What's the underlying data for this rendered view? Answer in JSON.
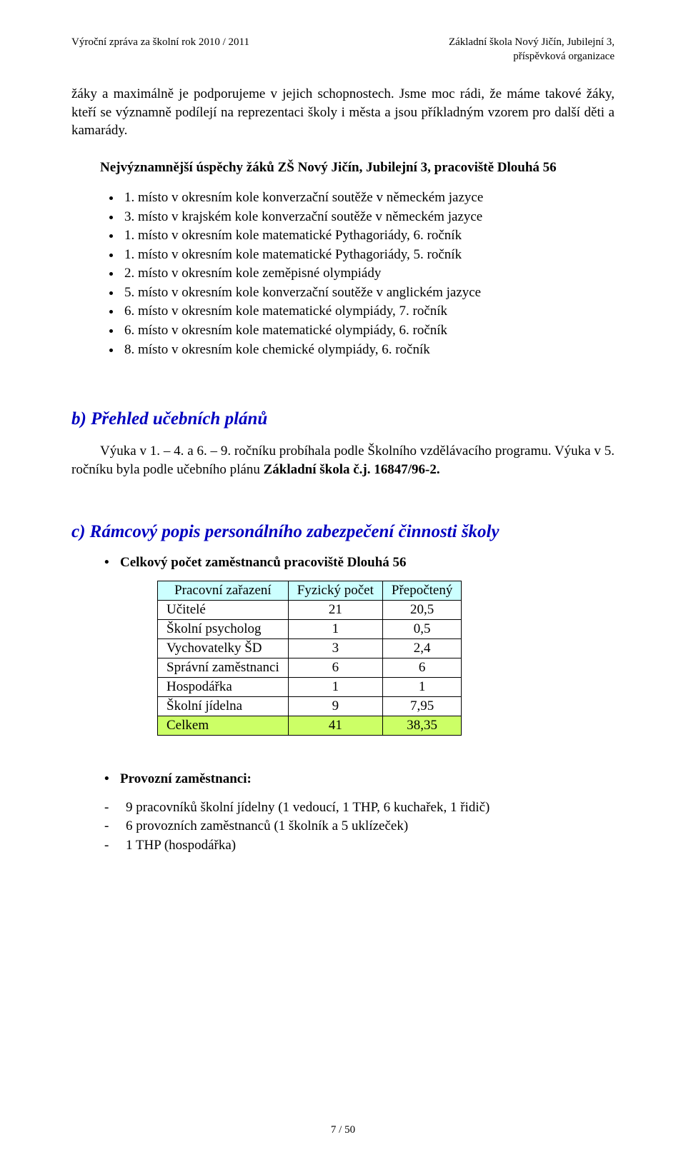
{
  "colors": {
    "heading": "#0000c0",
    "text": "#000000",
    "header_blue_bg": "#ccffff",
    "total_green_bg": "#ccff66",
    "table_border": "#000000",
    "page_bg": "#ffffff"
  },
  "typography": {
    "body_fontsize_pt": 12,
    "heading_fontsize_pt": 16,
    "header_fontsize_pt": 10,
    "font_family": "Times New Roman"
  },
  "header": {
    "left": "Výroční zpráva za školní rok 2010 / 2011",
    "right_line1": "Základní škola Nový Jičín, Jubilejní 3,",
    "right_line2": "příspěvková organizace"
  },
  "intro_paragraph": "žáky a maximálně je podporujeme v jejich schopnostech. Jsme moc rádi, že máme takové žáky, kteří se významně podílejí na reprezentaci školy i města a jsou příkladným vzorem pro další děti a kamarády.",
  "achievements_title": "Nejvýznamnější úspěchy žáků ZŠ Nový Jičín, Jubilejní 3, pracoviště Dlouhá 56",
  "achievements": [
    "1. místo v okresním kole konverzační soutěže v německém jazyce",
    "3. místo v krajském kole konverzační soutěže v německém jazyce",
    "1. místo v okresním kole matematické Pythagoriády, 6. ročník",
    "1. místo v okresním kole matematické Pythagoriády, 5. ročník",
    "2. místo v okresním kole zeměpisné olympiády",
    "5. místo v okresním kole konverzační soutěže v anglickém jazyce",
    "6. místo v okresním kole matematické olympiády, 7. ročník",
    "6. místo v okresním kole matematické olympiády, 6. ročník",
    "8. místo v okresním kole chemické olympiády, 6. ročník"
  ],
  "section_b_title": "b) Přehled učebních plánů",
  "section_b_para_prefix": "Výuka v 1. – 4. a 6. – 9. ročníku probíhala podle Školního vzdělávacího programu. Výuka v 5. ročníku byla podle učebního plánu ",
  "section_b_plan_bold": "Základní škola č.j. 16847/96-2.",
  "section_c_title": "c) Rámcový popis personálního zabezpečení činnosti školy",
  "section_c_bullet": "Celkový počet zaměstnanců pracoviště Dlouhá 56",
  "staff_table": {
    "type": "table",
    "columns": [
      "Pracovní zařazení",
      "Fyzický počet",
      "Přepočtený"
    ],
    "header_bg": "#ccffff",
    "total_bg": "#ccff66",
    "col_align": [
      "left",
      "center",
      "center"
    ],
    "rows": [
      [
        "Učitelé",
        "21",
        "20,5"
      ],
      [
        "Školní psycholog",
        "1",
        "0,5"
      ],
      [
        "Vychovatelky ŠD",
        "3",
        "2,4"
      ],
      [
        "Správní zaměstnanci",
        "6",
        "6"
      ],
      [
        "Hospodářka",
        "1",
        "1"
      ],
      [
        "Školní jídelna",
        "9",
        "7,95"
      ],
      [
        "Celkem",
        "41",
        "38,35"
      ]
    ],
    "total_row_index": 6
  },
  "ops_bullet": "Provozní zaměstnanci:",
  "ops_items": [
    "9 pracovníků školní jídelny (1 vedoucí, 1 THP, 6 kuchařek, 1 řidič)",
    "6 provozních zaměstnanců (1 školník a 5 uklízeček)",
    "1 THP (hospodářka)"
  ],
  "footer": "7 / 50"
}
